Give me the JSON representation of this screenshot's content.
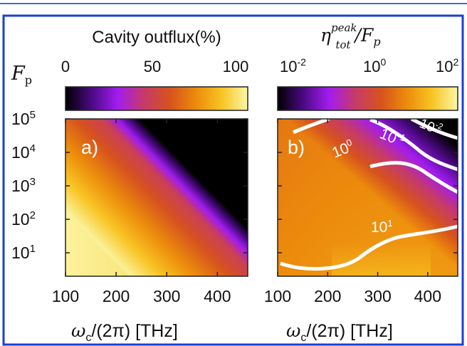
{
  "chart_data": [
    {
      "panel_label": "a)",
      "type": "heatmap",
      "colorbar": {
        "title": "Cavity outflux(%)",
        "ticks": [
          "0",
          "50",
          "100"
        ],
        "range": [
          0,
          100
        ],
        "colormap": [
          "#000000",
          "#4a0a82",
          "#a21cf0",
          "#c63a6a",
          "#d6521e",
          "#ec8a0c",
          "#f8c423",
          "#fbf6a6"
        ]
      },
      "x_ticks": [
        "100",
        "200",
        "300",
        "400"
      ],
      "x_range": [
        100,
        460
      ],
      "y_ticks_base": "10",
      "y_ticks_exp": [
        "1",
        "2",
        "3",
        "4",
        "5"
      ],
      "y_range_log10": [
        0.3,
        5
      ],
      "xlabel_main": "ω",
      "xlabel_sub": "c",
      "xlabel_rest": "/(2π) [THz]",
      "ylabel_main": "F",
      "ylabel_sub": "p"
    },
    {
      "panel_label": "b)",
      "type": "heatmap",
      "colorbar": {
        "title_main": "η",
        "title_sup": "peak",
        "title_sub": "tot",
        "title_rest": "/F",
        "title_rest_sub": "p",
        "tick_base": "10",
        "tick_exps": [
          "-2",
          "0",
          "2"
        ],
        "range_log10": [
          -2,
          2
        ],
        "colormap": [
          "#000000",
          "#4a0a82",
          "#a21cf0",
          "#c63a6a",
          "#d6521e",
          "#ec8a0c",
          "#f8c423",
          "#fbf6a6"
        ]
      },
      "contours": [
        {
          "base": "10",
          "exp": "1",
          "log10_value": 1
        },
        {
          "base": "10",
          "exp": "0",
          "log10_value": 0
        },
        {
          "base": "10",
          "exp": "-1",
          "log10_value": -1
        },
        {
          "base": "10",
          "exp": "-2",
          "log10_value": -2
        }
      ],
      "x_ticks": [
        "100",
        "200",
        "300",
        "400"
      ],
      "x_range": [
        100,
        460
      ],
      "y_range_log10": [
        0.3,
        5
      ],
      "xlabel_main": "ω",
      "xlabel_sub": "c",
      "xlabel_rest": "/(2π) [THz]"
    }
  ],
  "colors": {
    "frame_border": "#1a3fd6",
    "top_rule": "#3a6fd0"
  }
}
